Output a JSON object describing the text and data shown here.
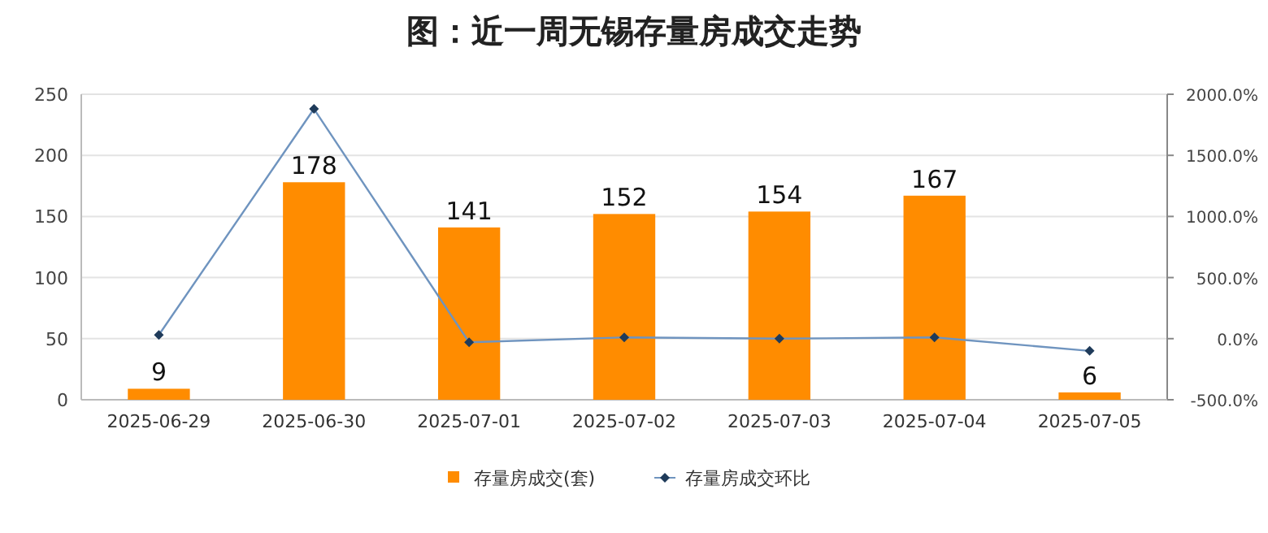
{
  "chart_data": {
    "type": "bar",
    "title": "图：近一周无锡存量房成交走势",
    "categories": [
      "2025-06-29",
      "2025-06-30",
      "2025-07-01",
      "2025-07-02",
      "2025-07-03",
      "2025-07-04",
      "2025-07-05"
    ],
    "series": [
      {
        "name": "存量房成交(套)",
        "color": "#ff8c00",
        "values": [
          9,
          178,
          141,
          152,
          154,
          167,
          6
        ],
        "value_labels": [
          "9",
          "178",
          "141",
          "152",
          "154",
          "167",
          "6"
        ]
      },
      {
        "name": "存量房成交环比",
        "type": "line",
        "axis": "y2",
        "color": "#6f94bf",
        "marker": "diamond",
        "values": [
          30,
          1880,
          -30,
          10,
          0,
          10,
          -100
        ]
      }
    ],
    "ylim": [
      0,
      250
    ],
    "yticks": [
      0,
      50,
      100,
      150,
      200,
      250
    ],
    "y2lim": [
      -500,
      2000
    ],
    "y2ticks": [
      {
        "value": -500,
        "label": "-500.0%"
      },
      {
        "value": 0,
        "label": "0.0%"
      },
      {
        "value": 500,
        "label": "500.0%"
      },
      {
        "value": 1000,
        "label": "1000.0%"
      },
      {
        "value": 1500,
        "label": "1500.0%"
      },
      {
        "value": 2000,
        "label": "2000.0%"
      }
    ],
    "grid": "y",
    "legend": "bottom"
  }
}
